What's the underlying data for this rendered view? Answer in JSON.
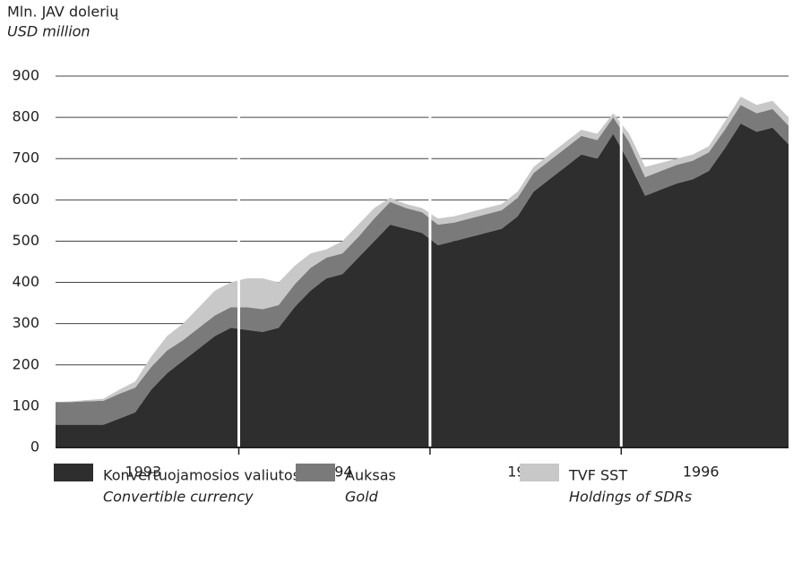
{
  "chart_data": {
    "type": "stacked_area",
    "y_label": "Mln. JAV dolerių",
    "y_label_en": "USD million",
    "categories": [
      null,
      null,
      null,
      null,
      null,
      "1993",
      null,
      null,
      null,
      null,
      null,
      null,
      null,
      null,
      null,
      null,
      null,
      "1994",
      null,
      null,
      null,
      null,
      null,
      null,
      null,
      null,
      null,
      null,
      null,
      "1995",
      null,
      null,
      null,
      null,
      null,
      null,
      null,
      null,
      null,
      null,
      "1996",
      null,
      null,
      null,
      null,
      null,
      null
    ],
    "ylim": [
      0,
      900
    ],
    "yticks": [
      0,
      100,
      200,
      300,
      400,
      500,
      600,
      700,
      800,
      900
    ],
    "grid": true,
    "series": [
      {
        "name": "Konvertuojamosios valiutos",
        "name_en": "Convertible currency",
        "color": "#2e2e2e",
        "values": [
          55,
          55,
          55,
          55,
          70,
          85,
          140,
          180,
          210,
          240,
          270,
          290,
          285,
          280,
          290,
          340,
          380,
          410,
          420,
          460,
          500,
          540,
          530,
          520,
          490,
          500,
          510,
          520,
          530,
          560,
          620,
          650,
          680,
          710,
          700,
          760,
          690,
          610,
          625,
          640,
          650,
          670,
          725,
          785,
          765,
          775,
          735
        ]
      },
      {
        "name": "Auksas",
        "name_en": "Gold",
        "color": "#7a7a7a",
        "values": [
          55,
          55,
          57,
          58,
          60,
          60,
          55,
          55,
          50,
          50,
          50,
          50,
          55,
          55,
          55,
          55,
          55,
          50,
          50,
          50,
          55,
          55,
          50,
          50,
          50,
          45,
          45,
          45,
          45,
          45,
          45,
          45,
          45,
          45,
          45,
          40,
          50,
          45,
          45,
          45,
          45,
          45,
          45,
          45,
          45,
          45,
          45
        ]
      },
      {
        "name": "TVF SST",
        "name_en": "Holdings of SDRs",
        "color": "#c8c8c8",
        "values": [
          0,
          2,
          3,
          5,
          10,
          15,
          25,
          35,
          40,
          50,
          60,
          60,
          70,
          75,
          55,
          45,
          35,
          20,
          30,
          30,
          25,
          10,
          10,
          10,
          15,
          15,
          15,
          15,
          15,
          15,
          15,
          15,
          15,
          15,
          15,
          10,
          20,
          25,
          20,
          15,
          15,
          15,
          20,
          20,
          20,
          20,
          20
        ]
      }
    ]
  }
}
